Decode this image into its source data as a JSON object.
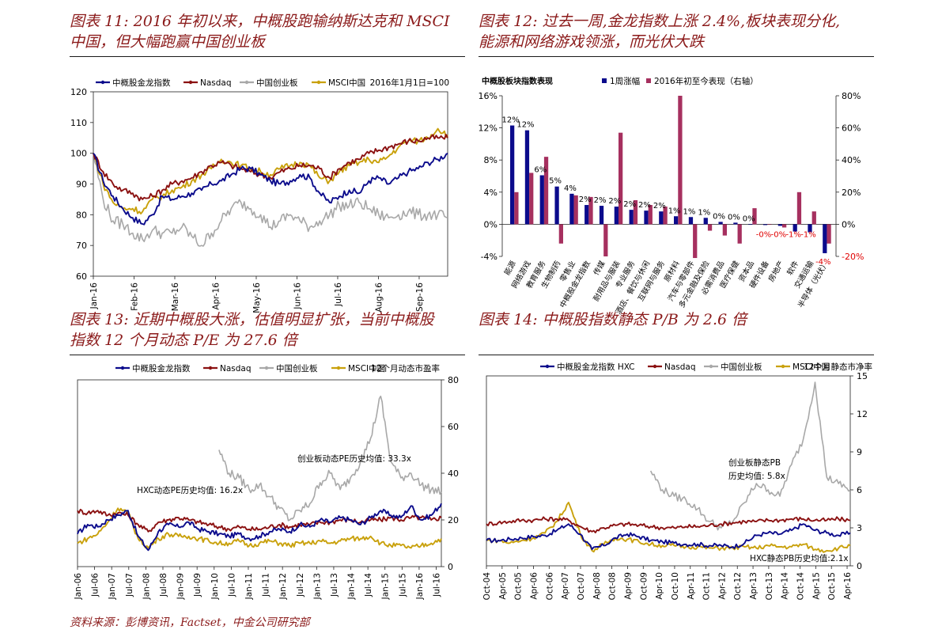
{
  "charts_meta": {
    "fig11": {
      "title_lines": [
        "图表 11: 2016 年初以来，中概股跑输纳斯达克和 MSCI",
        "中国，但大幅跑赢中国创业板"
      ]
    },
    "fig12": {
      "title_lines": [
        "图表 12: 过去一周,金龙指数上涨 2.4%,板块表现分化,",
        "能源和网络游戏领涨，而光伏大跌"
      ]
    },
    "fig13": {
      "title_lines": [
        "图表 13: 近期中概股大涨，估值明显扩张，当前中概股",
        "指数 12 个月动态 P/E 为 27.6 倍"
      ]
    },
    "fig14": {
      "title_lines": [
        "图表 14: 中概股指数静态 P/B 为 2.6 倍"
      ]
    }
  },
  "source_text": "资料来源：彭博资讯，Factset，中金公司研究部",
  "colors": {
    "navy": "#0b0b8c",
    "maroon": "#8b1111",
    "gray": "#a8a8a8",
    "gold": "#c9a10c",
    "rose": "#a6305f",
    "neg": "#e00000"
  },
  "chart_data": [
    {
      "id": "fig11",
      "type": "line",
      "corner_note": "2016年1月1日=100",
      "legend": [
        "中概股金龙指数",
        "Nasdaq",
        "中国创业板",
        "MSCI中国"
      ],
      "x_ticks": [
        "Jan-16",
        "Feb-16",
        "Mar-16",
        "Apr-16",
        "May-16",
        "Jun-16",
        "Jul-16",
        "Aug-16",
        "Sep-16"
      ],
      "ylim": [
        60,
        120
      ],
      "y_ticks": [
        60,
        70,
        80,
        90,
        100,
        110,
        120
      ],
      "series": [
        {
          "name": "中概股金龙指数",
          "values": [
            100,
            91,
            86,
            82,
            79,
            77,
            80,
            86,
            85,
            86,
            87,
            88,
            90,
            91,
            93,
            95,
            95,
            93,
            91,
            90,
            91,
            93,
            92,
            87,
            84,
            86,
            88,
            87,
            91,
            92,
            90,
            92,
            94,
            95,
            97,
            98,
            100
          ]
        },
        {
          "name": "Nasdaq",
          "values": [
            100,
            94,
            90,
            88,
            87,
            85,
            86,
            88,
            90,
            91,
            92,
            94,
            96,
            97,
            96,
            95,
            94,
            93,
            92,
            94,
            95,
            96,
            96,
            95,
            92,
            95,
            97,
            98,
            100,
            101,
            102,
            103,
            104,
            104,
            105,
            105,
            105
          ]
        },
        {
          "name": "中国创业板",
          "values": [
            100,
            85,
            78,
            77,
            74,
            72,
            75,
            74,
            74,
            76,
            73,
            70,
            74,
            78,
            82,
            84,
            82,
            80,
            76,
            78,
            80,
            78,
            76,
            78,
            80,
            83,
            83,
            84,
            82,
            80,
            79,
            80,
            81,
            80,
            80,
            80,
            79
          ]
        },
        {
          "name": "MSCI中国",
          "values": [
            100,
            90,
            84,
            82,
            82,
            81,
            85,
            86,
            88,
            89,
            91,
            93,
            95,
            98,
            97,
            96,
            95,
            94,
            93,
            95,
            96,
            97,
            96,
            92,
            91,
            94,
            96,
            97,
            98,
            97,
            99,
            102,
            104,
            104,
            105,
            108,
            106
          ]
        }
      ]
    },
    {
      "id": "fig12",
      "type": "bar",
      "subtitle": "中概股板块指数表现",
      "legend": [
        "1周涨幅",
        "2016年初至今表现（右轴）"
      ],
      "categories": [
        "能源",
        "网络游戏",
        "教育服务",
        "生物制药",
        "零售业",
        "中概股金龙指数",
        "传媒",
        "耐用品与服装",
        "专业服务",
        "酒店、餐饮与休闲",
        "互联网与服务",
        "原材料",
        "汽车与零部件",
        "多元金融及保险",
        "必需消费品",
        "医疗保健",
        "资本品",
        "硬件设备",
        "房地产",
        "软件",
        "交通运输",
        "半导体（光伏）"
      ],
      "values": [
        12.3,
        11.7,
        6.1,
        4.7,
        3.8,
        2.4,
        2.3,
        2.2,
        1.8,
        1.7,
        1.6,
        1.0,
        0.9,
        0.8,
        0.3,
        0.2,
        0.0,
        -0.1,
        -0.2,
        -0.9,
        -1.0,
        -3.6
      ],
      "labels": [
        "12%",
        "12%",
        "6%",
        "5%",
        "4%",
        "2%",
        "2%",
        "2%",
        "2%",
        "2%",
        "2%",
        "1%",
        "1%",
        "1%",
        "0%",
        "0%",
        "0%",
        "-0%",
        "-0%",
        "-1%",
        "-1%",
        "-4%"
      ],
      "right_values": [
        20,
        32,
        42,
        -12,
        18,
        17,
        -20,
        57,
        15,
        12,
        11,
        80,
        -21,
        -4,
        -7,
        -12,
        10,
        0,
        -2,
        20,
        8,
        -12
      ],
      "ylim": [
        -4,
        16
      ],
      "y_ticks": [
        "-4%",
        "0%",
        "4%",
        "8%",
        "12%",
        "16%"
      ],
      "y2lim": [
        -20,
        80
      ],
      "y2_ticks": [
        "-20%",
        "0%",
        "20%",
        "40%",
        "60%",
        "80%"
      ]
    },
    {
      "id": "fig13",
      "type": "line",
      "corner_note": "12个月动态市盈率",
      "legend": [
        "中概股金龙指数",
        "Nasdaq",
        "中国创业板",
        "MSCI中国"
      ],
      "annotations": [
        "创业板动态PE历史均值: 33.3x",
        "HXC动态PE历史均值: 16.2x"
      ],
      "x_ticks": [
        "Jan-06",
        "Jul-06",
        "Jan-07",
        "Jul-07",
        "Jan-08",
        "Jul-08",
        "Jan-09",
        "Jul-09",
        "Jan-10",
        "Jul-10",
        "Jan-11",
        "Jul-11",
        "Jan-12",
        "Jul-12",
        "Jan-13",
        "Jul-13",
        "Jan-14",
        "Jul-14",
        "Jan-15",
        "Jul-15",
        "Jan-16",
        "Jul-16"
      ],
      "ylim": [
        0,
        80
      ],
      "y_ticks": [
        0,
        20,
        40,
        60,
        80
      ],
      "series": [
        {
          "name": "中概股金龙指数",
          "values": [
            14,
            18,
            17,
            20,
            22,
            24,
            13,
            7,
            15,
            18,
            17,
            19,
            16,
            15,
            14,
            13,
            14,
            12,
            13,
            15,
            16,
            15,
            18,
            17,
            20,
            19,
            21,
            20,
            18,
            21,
            24,
            22,
            21,
            26,
            20,
            22,
            27
          ]
        },
        {
          "name": "Nasdaq",
          "values": [
            24,
            23,
            24,
            22,
            23,
            22,
            18,
            15,
            19,
            20,
            21,
            20,
            19,
            18,
            17,
            16,
            17,
            16,
            16,
            17,
            18,
            17,
            18,
            18,
            19,
            19,
            20,
            20,
            19,
            20,
            20,
            21,
            20,
            21,
            21,
            20,
            21
          ]
        },
        {
          "name": "中国创业板",
          "values": [
            null,
            null,
            null,
            null,
            null,
            null,
            null,
            null,
            null,
            null,
            null,
            null,
            null,
            null,
            50,
            40,
            38,
            33,
            35,
            30,
            25,
            20,
            24,
            27,
            36,
            40,
            33,
            38,
            45,
            55,
            73,
            45,
            38,
            40,
            35,
            33,
            32
          ]
        },
        {
          "name": "MSCI中国",
          "values": [
            10,
            12,
            14,
            19,
            25,
            23,
            12,
            8,
            12,
            14,
            13,
            13,
            12,
            11,
            10,
            10,
            11,
            9,
            10,
            11,
            10,
            9,
            10,
            10,
            11,
            10,
            11,
            12,
            12,
            13,
            10,
            9,
            9,
            8,
            9,
            10,
            12
          ]
        }
      ]
    },
    {
      "id": "fig14",
      "type": "line",
      "corner_note": "12个月静态市净率",
      "legend": [
        "中概股金龙指数 HXC",
        "Nasdaq",
        "中国创业板",
        "MSCI中国"
      ],
      "annotations": [
        "创业板静态PB",
        "历史均值: 5.8x",
        "HXC静态PB历史均值:2.1x"
      ],
      "x_ticks": [
        "Oct-04",
        "Apr-05",
        "Oct-05",
        "Apr-06",
        "Oct-06",
        "Apr-07",
        "Oct-07",
        "Apr-08",
        "Oct-08",
        "Apr-09",
        "Oct-09",
        "Apr-10",
        "Oct-10",
        "Apr-11",
        "Oct-11",
        "Apr-12",
        "Oct-12",
        "Apr-13",
        "Oct-13",
        "Apr-14",
        "Oct-14",
        "Apr-15",
        "Oct-15",
        "Apr-16"
      ],
      "ylim": [
        0,
        15
      ],
      "y_ticks": [
        0,
        3,
        6,
        9,
        12,
        15
      ],
      "series": [
        {
          "name": "中概股金龙指数 HXC",
          "values": [
            2.0,
            2.0,
            2.1,
            2.2,
            2.3,
            2.4,
            2.8,
            3.3,
            2.5,
            1.3,
            1.6,
            2.2,
            2.5,
            2.3,
            2.0,
            1.9,
            1.8,
            1.7,
            1.7,
            1.6,
            1.6,
            1.5,
            1.8,
            2.4,
            2.6,
            2.5,
            2.8,
            3.3,
            2.8,
            2.6,
            2.4,
            2.6
          ]
        },
        {
          "name": "Nasdaq",
          "values": [
            3.3,
            3.4,
            3.5,
            3.6,
            3.6,
            3.7,
            3.7,
            3.6,
            3.1,
            2.7,
            3.0,
            3.2,
            3.3,
            3.2,
            3.1,
            3.0,
            3.0,
            3.1,
            3.1,
            3.2,
            3.3,
            3.4,
            3.5,
            3.5,
            3.6,
            3.6,
            3.7,
            3.7,
            3.6,
            3.6,
            3.7,
            3.6
          ]
        },
        {
          "name": "中国创业板",
          "values": [
            null,
            null,
            null,
            null,
            null,
            null,
            null,
            null,
            null,
            null,
            null,
            null,
            null,
            null,
            7.5,
            6.0,
            5.5,
            5.2,
            4.5,
            3.5,
            3.0,
            3.5,
            5.0,
            6.5,
            6.0,
            5.5,
            8.0,
            10.0,
            14.5,
            7.0,
            6.5,
            6.0
          ]
        },
        {
          "name": "MSCI中国",
          "values": [
            2.0,
            2.0,
            1.8,
            2.0,
            2.2,
            2.6,
            3.5,
            5.0,
            2.5,
            1.2,
            1.7,
            2.2,
            2.1,
            1.9,
            1.7,
            1.6,
            1.6,
            1.5,
            1.5,
            1.4,
            1.4,
            1.4,
            1.5,
            1.4,
            1.6,
            1.5,
            1.5,
            1.7,
            1.3,
            1.2,
            1.4,
            1.6
          ]
        }
      ]
    }
  ]
}
